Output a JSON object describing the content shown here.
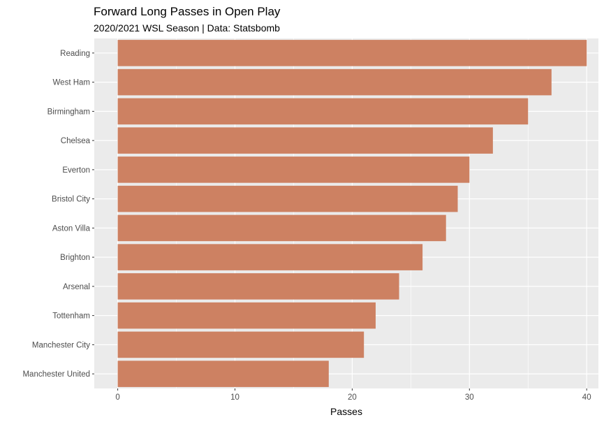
{
  "chart_data": {
    "type": "bar",
    "orientation": "horizontal",
    "title": "Forward Long Passes in Open Play",
    "subtitle": "2020/2021 WSL Season | Data: Statsbomb",
    "xlabel": "Passes",
    "ylabel": "",
    "categories": [
      "Reading",
      "West Ham",
      "Birmingham",
      "Chelsea",
      "Everton",
      "Bristol City",
      "Aston Villa",
      "Brighton",
      "Arsenal",
      "Tottenham",
      "Manchester City",
      "Manchester United"
    ],
    "values": [
      40,
      37,
      35,
      32,
      30,
      29,
      28,
      26,
      24,
      22,
      21,
      18
    ],
    "xlim": [
      -2,
      41
    ],
    "xticks": [
      0,
      10,
      20,
      30,
      40
    ],
    "bar_color": "#CD8162",
    "panel_background": "#EBEBEB",
    "grid": true
  }
}
